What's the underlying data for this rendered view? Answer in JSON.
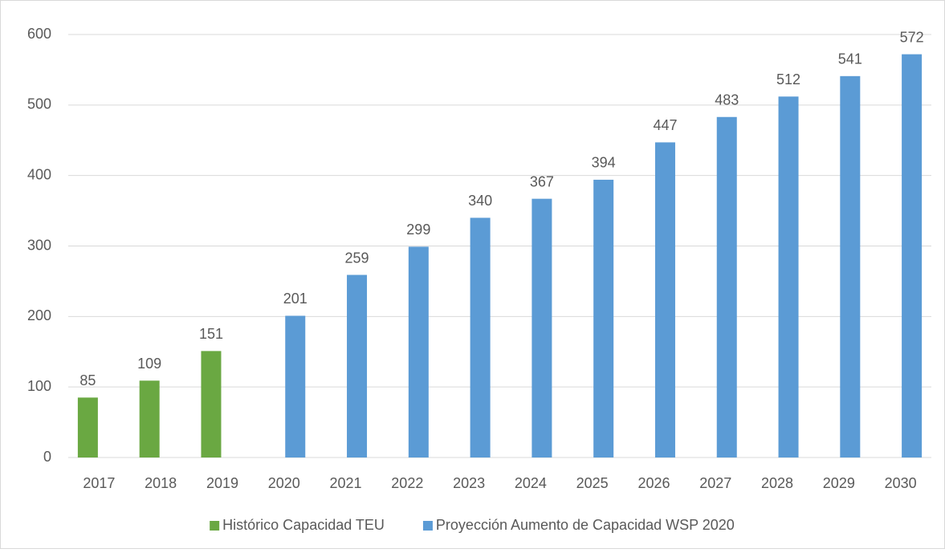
{
  "chart_data": {
    "type": "bar",
    "categories": [
      "2017",
      "2018",
      "2019",
      "2020",
      "2021",
      "2022",
      "2023",
      "2024",
      "2025",
      "2026",
      "2027",
      "2028",
      "2029",
      "2030"
    ],
    "series": [
      {
        "name": "Histórico Capacidad TEU",
        "color": "#6aa842",
        "values": [
          85,
          109,
          151,
          null,
          null,
          null,
          null,
          null,
          null,
          null,
          null,
          null,
          null,
          null
        ]
      },
      {
        "name": "Proyección Aumento de Capacidad WSP 2020",
        "color": "#5b9bd5",
        "values": [
          null,
          null,
          null,
          201,
          259,
          299,
          340,
          367,
          394,
          447,
          483,
          512,
          541,
          572
        ]
      }
    ],
    "ylim": [
      0,
      600
    ],
    "yticks": [
      0,
      100,
      200,
      300,
      400,
      500,
      600
    ],
    "grid": true,
    "legend": "bottom"
  }
}
